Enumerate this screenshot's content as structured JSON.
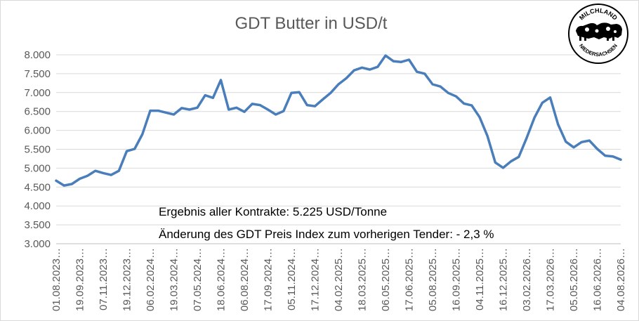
{
  "chart_data": {
    "type": "line",
    "title": "GDT Butter in USD/t",
    "xlabel": "",
    "ylabel": "",
    "ylim": [
      3000,
      8000
    ],
    "grid": true,
    "yticks": [
      "3.000",
      "3.500",
      "4.000",
      "4.500",
      "5.000",
      "5.500",
      "6.000",
      "6.500",
      "7.000",
      "7.500",
      "8.000"
    ],
    "x_tick_labels": [
      "01.08.2023…",
      "19.09.2023…",
      "07.11.2023…",
      "19.12.2023…",
      "06.02.2024…",
      "19.03.2024…",
      "07.05.2024…",
      "18.06.2024…",
      "06.08.2024…",
      "17.09.2024…",
      "05.11.2024…",
      "17.12.2024…",
      "04.02.2025…",
      "18.03.2025…",
      "06.05.2025…",
      "17.06.2025…",
      "05.08.2025…",
      "16.09.2025…",
      "04.11.2025…",
      "16.12.2025…",
      "03.02.2026…",
      "17.03.2026…",
      "05.05.2026…",
      "16.06.2026…",
      "04.08.2026…"
    ],
    "series": [
      {
        "color": "#4a7ebb",
        "values": [
          4670,
          4540,
          4580,
          4720,
          4800,
          4930,
          4870,
          4820,
          4930,
          5450,
          5510,
          5900,
          6520,
          6520,
          6470,
          6420,
          6590,
          6550,
          6600,
          6930,
          6860,
          7330,
          6550,
          6600,
          6490,
          6700,
          6670,
          6550,
          6420,
          6510,
          6990,
          7010,
          6670,
          6640,
          6820,
          6990,
          7220,
          7380,
          7590,
          7660,
          7610,
          7680,
          7980,
          7830,
          7810,
          7870,
          7550,
          7500,
          7220,
          7160,
          6990,
          6900,
          6710,
          6660,
          6350,
          5850,
          5150,
          5010,
          5180,
          5300,
          5800,
          6340,
          6730,
          6870,
          6160,
          5700,
          5550,
          5690,
          5730,
          5510,
          5330,
          5310,
          5225
        ]
      }
    ]
  },
  "annotations": {
    "result": "Ergebnis aller Kontrakte: 5.225 USD/Tonne",
    "change": "Änderung des GDT Preis Index zum vorherigen Tender: - 2,3 %"
  },
  "logo": {
    "top_text": "MILCHLAND",
    "bottom_text": "NIEDERSACHSEN"
  }
}
